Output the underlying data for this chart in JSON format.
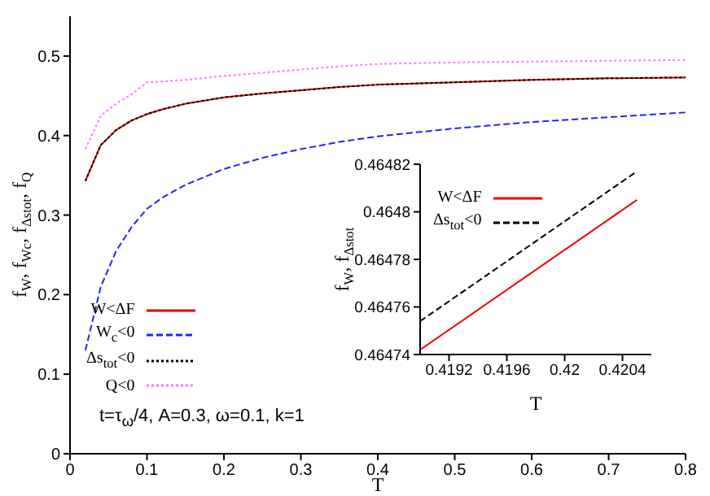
{
  "chart_data": [
    {
      "type": "line",
      "xlabel": "T",
      "ylabel": "f$_{W}$, f$_{Wc}$, f$_{Δstot}$, f$_{Q}$",
      "xlim": [
        0,
        0.8
      ],
      "ylim": [
        0,
        0.55
      ],
      "xticks": [
        0,
        0.1,
        0.2,
        0.3,
        0.4,
        0.5,
        0.6,
        0.7,
        0.8
      ],
      "yticks": [
        0,
        0.1,
        0.2,
        0.3,
        0.4,
        0.5
      ],
      "legend": "bottom left",
      "annotations": [
        "t=τ$_{ω}$/4, A=0.3, ω=0.1, k=1"
      ],
      "x": [
        0.02,
        0.04,
        0.06,
        0.08,
        0.1,
        0.12,
        0.15,
        0.2,
        0.25,
        0.3,
        0.35,
        0.4,
        0.5,
        0.6,
        0.7,
        0.8
      ],
      "series": [
        {
          "name": "W<ΔF",
          "color": "#dd0000",
          "line_style": "solid",
          "values": [
            0.343,
            0.388,
            0.407,
            0.419,
            0.427,
            0.433,
            0.44,
            0.448,
            0.453,
            0.457,
            0.461,
            0.464,
            0.467,
            0.47,
            0.472,
            0.473
          ]
        },
        {
          "name": "W$_{c}$<0",
          "color": "#2222ff",
          "line_style": "dashed",
          "values": [
            0.13,
            0.21,
            0.255,
            0.285,
            0.308,
            0.322,
            0.338,
            0.358,
            0.372,
            0.383,
            0.392,
            0.399,
            0.409,
            0.417,
            0.423,
            0.429
          ]
        },
        {
          "name": "Δs$_{tot}$<0",
          "color": "#000000",
          "line_style": "dotted",
          "values": [
            0.343,
            0.388,
            0.407,
            0.419,
            0.427,
            0.433,
            0.44,
            0.448,
            0.453,
            0.457,
            0.461,
            0.464,
            0.467,
            0.47,
            0.472,
            0.473
          ]
        },
        {
          "name": "Q<0",
          "color": "#ff77ff",
          "line_style": "dotted",
          "values": [
            0.383,
            0.425,
            0.44,
            0.452,
            0.467,
            0.468,
            0.47,
            0.475,
            0.479,
            0.483,
            0.487,
            0.49,
            0.492,
            0.493,
            0.494,
            0.495
          ]
        }
      ]
    },
    {
      "type": "line",
      "xlabel": "T",
      "ylabel": "f$_{W}$, f$_{Δstot}$",
      "xlim": [
        0.419,
        0.4206
      ],
      "ylim": [
        0.46474,
        0.46482
      ],
      "xticks": [
        0.4192,
        0.4196,
        0.42,
        0.4204
      ],
      "yticks": [
        0.46474,
        0.46476,
        0.46478,
        0.4648,
        0.46482
      ],
      "legend": "top left",
      "x": [
        0.419,
        0.4205
      ],
      "series": [
        {
          "name": "W<ΔF",
          "color": "#ee0000",
          "line_style": "solid",
          "values": [
            0.464742,
            0.464805
          ]
        },
        {
          "name": "Δs$_{tot}$<0",
          "color": "#000000",
          "line_style": "dashed",
          "values": [
            0.464754,
            0.464817
          ]
        }
      ]
    }
  ]
}
